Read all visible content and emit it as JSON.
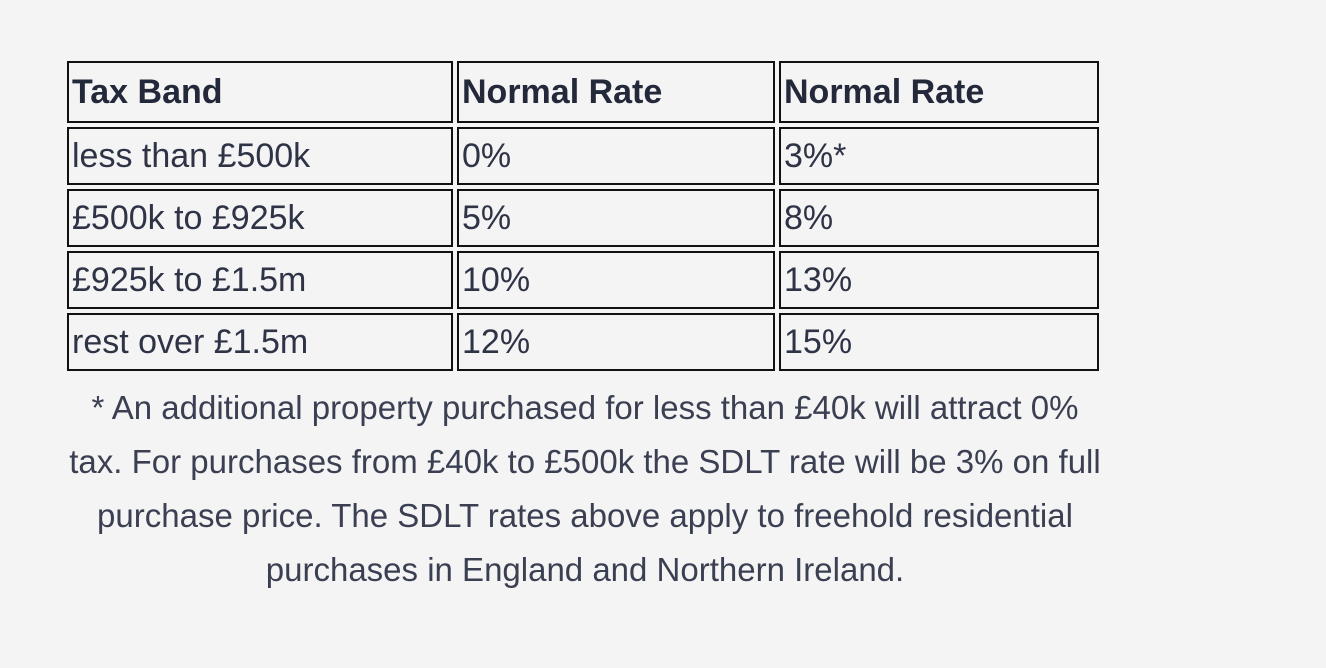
{
  "table": {
    "headers": [
      "Tax Band",
      "Normal Rate",
      "Normal Rate"
    ],
    "rows": [
      [
        "less than £500k",
        "0%",
        "3%*"
      ],
      [
        "£500k to £925k",
        "5%",
        "8%"
      ],
      [
        "£925k to £1.5m",
        "10%",
        "13%"
      ],
      [
        "rest over £1.5m",
        "12%",
        "15%"
      ]
    ]
  },
  "footnote": "* An additional property purchased for less than £40k will attract 0% tax. For purchases from £40k to £500k the SDLT rate will be 3% on full purchase price. The SDLT rates above apply to freehold residential purchases in England and Northern Ireland."
}
